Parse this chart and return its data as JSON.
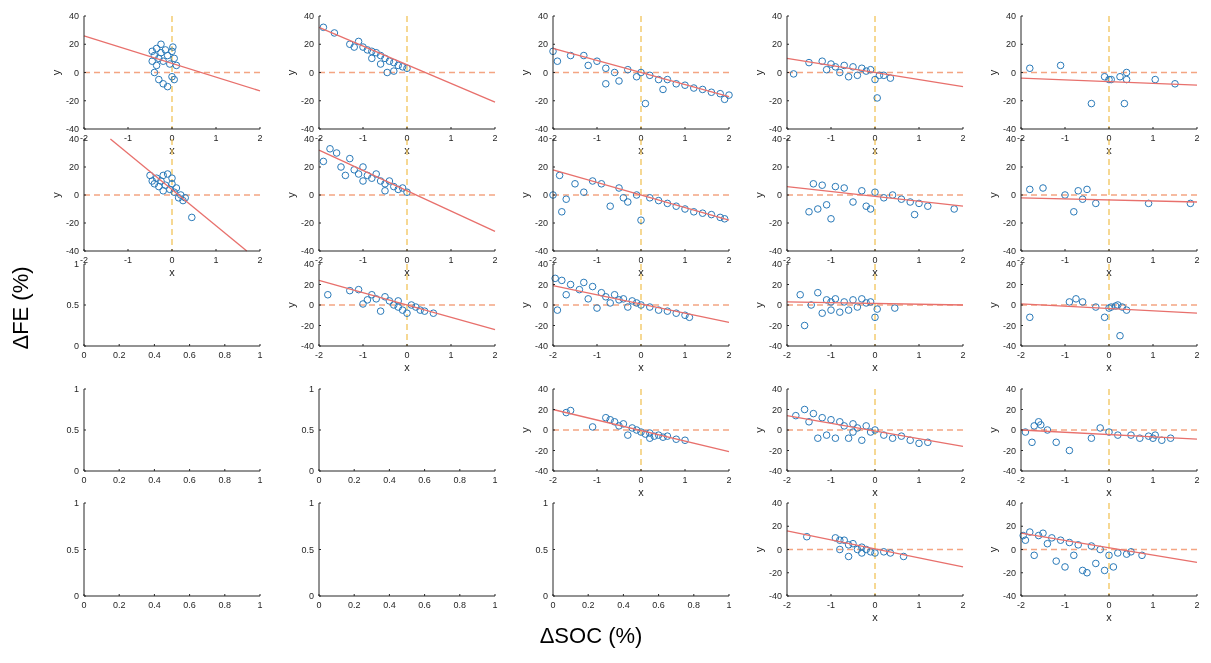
{
  "chart_data": [
    {
      "type": "scatter",
      "xlabel": "x",
      "ylabel": "y",
      "xlim": [
        -2,
        2
      ],
      "ylim": [
        -40,
        40
      ],
      "xticks": [
        -2,
        -1,
        0,
        1,
        2
      ],
      "yticks": [
        -40,
        -20,
        0,
        20,
        40
      ],
      "annotations": [
        "ΔFE (%)",
        "ΔSOC (%)"
      ],
      "ref_lines": [
        {
          "axis": "y",
          "value": 0,
          "color": "#f4a582",
          "line_style": "dashed"
        },
        {
          "axis": "x",
          "value": 0,
          "color": "#f2c45a",
          "line_style": "dashed"
        }
      ],
      "series": [
        {
          "type": "scatter",
          "marker": "circle",
          "color": "#2a7ab9",
          "x": [
            -0.45,
            -0.4,
            -0.35,
            -0.3,
            -0.25,
            -0.2,
            -0.15,
            -0.1,
            -0.05,
            0,
            0.05,
            0.1,
            -0.4,
            -0.3,
            -0.2,
            -0.1,
            0,
            0.05,
            -0.45,
            -0.35,
            0.02,
            -0.25
          ],
          "values": [
            15,
            12,
            17,
            10,
            14,
            8,
            16,
            12,
            6,
            15,
            10,
            5,
            0,
            -5,
            -8,
            -10,
            -3,
            -5,
            8,
            5,
            18,
            20
          ]
        },
        {
          "type": "line",
          "color": "#e8706c",
          "x": [
            -2,
            2
          ],
          "values": [
            26,
            -13
          ]
        }
      ]
    },
    {
      "type": "scatter",
      "xlabel": "x",
      "ylabel": "y",
      "xlim": [
        -2,
        2
      ],
      "ylim": [
        -40,
        40
      ],
      "xticks": [
        -2,
        -1,
        0,
        1,
        2
      ],
      "yticks": [
        -40,
        -20,
        0,
        20,
        40
      ],
      "ref_lines": [
        {
          "axis": "y",
          "value": 0,
          "color": "#f4a582",
          "line_style": "dashed"
        },
        {
          "axis": "x",
          "value": 0,
          "color": "#f2c45a",
          "line_style": "dashed"
        }
      ],
      "series": [
        {
          "type": "scatter",
          "marker": "circle",
          "color": "#2a7ab9",
          "x": [
            -1.9,
            -1.65,
            -1.3,
            -1.1,
            -1,
            -0.9,
            -0.8,
            -0.7,
            -0.6,
            -0.5,
            -0.4,
            -0.3,
            -0.2,
            -0.1,
            0,
            -0.6,
            -0.8,
            -0.3,
            -1.2,
            -0.45
          ],
          "values": [
            32,
            28,
            20,
            22,
            18,
            16,
            15,
            14,
            12,
            10,
            8,
            7,
            5,
            4,
            3,
            6,
            10,
            1,
            18,
            0
          ]
        },
        {
          "type": "line",
          "color": "#e8706c",
          "x": [
            -2,
            2
          ],
          "values": [
            32,
            -21
          ]
        }
      ]
    },
    {
      "type": "scatter",
      "xlabel": "x",
      "ylabel": "y",
      "xlim": [
        -2,
        2
      ],
      "ylim": [
        -40,
        40
      ],
      "xticks": [
        -2,
        -1,
        0,
        1,
        2
      ],
      "yticks": [
        -40,
        -20,
        0,
        20,
        40
      ],
      "ref_lines": [
        {
          "axis": "y",
          "value": 0,
          "color": "#f4a582",
          "line_style": "dashed"
        },
        {
          "axis": "x",
          "value": 0,
          "color": "#f2c45a",
          "line_style": "dashed"
        }
      ],
      "series": [
        {
          "type": "scatter",
          "marker": "circle",
          "color": "#2a7ab9",
          "x": [
            -2,
            -1.9,
            -1.6,
            -1.3,
            -1.2,
            -1,
            -0.8,
            -0.6,
            -0.5,
            -0.3,
            -0.1,
            0,
            0.1,
            0.2,
            0.4,
            0.6,
            0.8,
            1,
            1.2,
            1.4,
            1.6,
            1.8,
            2,
            0.5,
            -0.8,
            1.9
          ],
          "values": [
            15,
            8,
            12,
            12,
            5,
            8,
            3,
            0,
            -6,
            2,
            -3,
            0,
            -22,
            -2,
            -5,
            -5,
            -8,
            -9,
            -11,
            -12,
            -14,
            -15,
            -16,
            -12,
            -8,
            -19
          ]
        },
        {
          "type": "line",
          "color": "#e8706c",
          "x": [
            -2,
            2
          ],
          "values": [
            17,
            -17
          ]
        }
      ]
    },
    {
      "type": "scatter",
      "xlabel": "x",
      "ylabel": "y",
      "xlim": [
        -2,
        2
      ],
      "ylim": [
        -40,
        40
      ],
      "xticks": [
        -2,
        -1,
        0,
        1,
        2
      ],
      "yticks": [
        -40,
        -20,
        0,
        20,
        40
      ],
      "ref_lines": [
        {
          "axis": "y",
          "value": 0,
          "color": "#f4a582",
          "line_style": "dashed"
        },
        {
          "axis": "x",
          "value": 0,
          "color": "#f2c45a",
          "line_style": "dashed"
        }
      ],
      "series": [
        {
          "type": "scatter",
          "marker": "circle",
          "color": "#2a7ab9",
          "x": [
            -1.85,
            -1.5,
            -1.2,
            -1.1,
            -1,
            -0.9,
            -0.7,
            -0.6,
            -0.5,
            -0.4,
            -0.3,
            -0.2,
            -0.1,
            0,
            0.05,
            0.1,
            0.2,
            0.35,
            -0.8
          ],
          "values": [
            -1,
            7,
            8,
            2,
            6,
            4,
            5,
            -3,
            4,
            -2,
            3,
            1,
            2,
            -5,
            -18,
            -2,
            -2,
            -4,
            0
          ]
        },
        {
          "type": "line",
          "color": "#e8706c",
          "x": [
            -2,
            2
          ],
          "values": [
            10,
            -10
          ]
        }
      ]
    },
    {
      "type": "scatter",
      "xlabel": "x",
      "ylabel": "y",
      "xlim": [
        -2,
        2
      ],
      "ylim": [
        -40,
        40
      ],
      "xticks": [
        -2,
        -1,
        0,
        1,
        2
      ],
      "yticks": [
        -40,
        -20,
        0,
        20,
        40
      ],
      "ref_lines": [
        {
          "axis": "y",
          "value": 0,
          "color": "#f4a582",
          "line_style": "dashed"
        },
        {
          "axis": "x",
          "value": 0,
          "color": "#f2c45a",
          "line_style": "dashed"
        }
      ],
      "series": [
        {
          "type": "scatter",
          "marker": "circle",
          "color": "#2a7ab9",
          "x": [
            -1.8,
            -1.1,
            -0.4,
            -0.1,
            0,
            0.05,
            0.25,
            0.35,
            0.4,
            0.4,
            1.05,
            1.5
          ],
          "values": [
            3,
            5,
            -22,
            -3,
            -5,
            -5,
            -3,
            -22,
            -5,
            0,
            -5,
            -8
          ]
        },
        {
          "type": "line",
          "color": "#e8706c",
          "x": [
            -2,
            2
          ],
          "values": [
            -4,
            -9
          ]
        }
      ]
    },
    {
      "type": "scatter",
      "xlabel": "x",
      "ylabel": "y",
      "xlim": [
        -2,
        2
      ],
      "ylim": [
        -40,
        40
      ],
      "xticks": [
        -2,
        -1,
        0,
        1,
        2
      ],
      "yticks": [
        -40,
        -20,
        0,
        20,
        40
      ],
      "ref_lines": [
        {
          "axis": "y",
          "value": 0,
          "color": "#f4a582",
          "line_style": "dashed"
        },
        {
          "axis": "x",
          "value": 0,
          "color": "#f2c45a",
          "line_style": "dashed"
        }
      ],
      "series": [
        {
          "type": "scatter",
          "marker": "circle",
          "color": "#2a7ab9",
          "x": [
            -0.5,
            -0.45,
            -0.4,
            -0.35,
            -0.3,
            -0.25,
            -0.2,
            -0.15,
            -0.1,
            -0.05,
            0,
            0.05,
            0.1,
            0.15,
            0.2,
            0.25,
            0.3,
            -0.2,
            0.45,
            0
          ],
          "values": [
            14,
            10,
            8,
            12,
            6,
            10,
            14,
            7,
            15,
            4,
            8,
            2,
            5,
            -2,
            0,
            -4,
            -2,
            3,
            -16,
            12
          ]
        },
        {
          "type": "line",
          "color": "#e8706c",
          "x": [
            -1.4,
            1.7
          ],
          "values": [
            40,
            -40
          ]
        }
      ]
    },
    {
      "type": "scatter",
      "xlabel": "x",
      "ylabel": "y",
      "xlim": [
        -2,
        2
      ],
      "ylim": [
        -40,
        40
      ],
      "xticks": [
        -2,
        -1,
        0,
        1,
        2
      ],
      "yticks": [
        -40,
        -20,
        0,
        20,
        40
      ],
      "ref_lines": [
        {
          "axis": "y",
          "value": 0,
          "color": "#f4a582",
          "line_style": "dashed"
        },
        {
          "axis": "x",
          "value": 0,
          "color": "#f2c45a",
          "line_style": "dashed"
        }
      ],
      "series": [
        {
          "type": "scatter",
          "marker": "circle",
          "color": "#2a7ab9",
          "x": [
            -1.9,
            -1.75,
            -1.6,
            -1.5,
            -1.4,
            -1.3,
            -1.2,
            -1.1,
            -1,
            -0.9,
            -0.8,
            -0.7,
            -0.6,
            -0.5,
            -0.4,
            -0.3,
            -0.2,
            -0.1,
            0,
            -0.5,
            -1
          ],
          "values": [
            24,
            33,
            30,
            20,
            14,
            26,
            18,
            15,
            20,
            14,
            12,
            15,
            10,
            8,
            10,
            6,
            4,
            5,
            2,
            3,
            10
          ]
        },
        {
          "type": "line",
          "color": "#e8706c",
          "x": [
            -2,
            2
          ],
          "values": [
            32,
            -26
          ]
        }
      ]
    },
    {
      "type": "scatter",
      "xlabel": "x",
      "ylabel": "y",
      "xlim": [
        -2,
        2
      ],
      "ylim": [
        -40,
        40
      ],
      "xticks": [
        -2,
        -1,
        0,
        1,
        2
      ],
      "yticks": [
        -40,
        -20,
        0,
        20,
        40
      ],
      "ref_lines": [
        {
          "axis": "y",
          "value": 0,
          "color": "#f4a582",
          "line_style": "dashed"
        },
        {
          "axis": "x",
          "value": 0,
          "color": "#f2c45a",
          "line_style": "dashed"
        }
      ],
      "series": [
        {
          "type": "scatter",
          "marker": "circle",
          "color": "#2a7ab9",
          "x": [
            -2,
            -1.85,
            -1.8,
            -1.7,
            -1.5,
            -1.3,
            -1.1,
            -0.9,
            -0.7,
            -0.5,
            -0.3,
            -0.1,
            0,
            0.2,
            0.4,
            0.6,
            0.8,
            1,
            1.2,
            1.4,
            1.6,
            1.8,
            1.9,
            -0.4
          ],
          "values": [
            0,
            14,
            -12,
            -3,
            8,
            2,
            10,
            8,
            -8,
            5,
            -5,
            0,
            -18,
            -2,
            -4,
            -6,
            -8,
            -10,
            -12,
            -13,
            -14,
            -16,
            -17,
            -2
          ]
        },
        {
          "type": "line",
          "color": "#e8706c",
          "x": [
            -2,
            2
          ],
          "values": [
            18,
            -18
          ]
        }
      ]
    },
    {
      "type": "scatter",
      "xlabel": "x",
      "ylabel": "y",
      "xlim": [
        -2,
        2
      ],
      "ylim": [
        -40,
        40
      ],
      "xticks": [
        -2,
        -1,
        0,
        1,
        2
      ],
      "yticks": [
        -40,
        -20,
        0,
        20,
        40
      ],
      "ref_lines": [
        {
          "axis": "y",
          "value": 0,
          "color": "#f4a582",
          "line_style": "dashed"
        },
        {
          "axis": "x",
          "value": 0,
          "color": "#f2c45a",
          "line_style": "dashed"
        }
      ],
      "series": [
        {
          "type": "scatter",
          "marker": "circle",
          "color": "#2a7ab9",
          "x": [
            -1.5,
            -1.4,
            -1.3,
            -1.2,
            -1.1,
            -1,
            -0.9,
            -0.7,
            -0.5,
            -0.3,
            -0.2,
            -0.1,
            0,
            0.2,
            0.4,
            0.6,
            0.8,
            0.9,
            1,
            1.2,
            1.8
          ],
          "values": [
            -12,
            8,
            -10,
            7,
            -7,
            -17,
            6,
            5,
            -5,
            3,
            -8,
            -10,
            2,
            -2,
            0,
            -3,
            -5,
            -14,
            -6,
            -8,
            -10
          ]
        },
        {
          "type": "line",
          "color": "#e8706c",
          "x": [
            -2,
            2
          ],
          "values": [
            6,
            -8
          ]
        }
      ]
    },
    {
      "type": "scatter",
      "xlabel": "x",
      "ylabel": "y",
      "xlim": [
        -2,
        2
      ],
      "ylim": [
        -40,
        40
      ],
      "xticks": [
        -2,
        -1,
        0,
        1,
        2
      ],
      "yticks": [
        -40,
        -20,
        0,
        20,
        40
      ],
      "ref_lines": [
        {
          "axis": "y",
          "value": 0,
          "color": "#f4a582",
          "line_style": "dashed"
        },
        {
          "axis": "x",
          "value": 0,
          "color": "#f2c45a",
          "line_style": "dashed"
        }
      ],
      "series": [
        {
          "type": "scatter",
          "marker": "circle",
          "color": "#2a7ab9",
          "x": [
            -1.8,
            -1.5,
            -1,
            -0.8,
            -0.7,
            -0.6,
            -0.5,
            -0.3,
            0.9,
            1.85
          ],
          "values": [
            4,
            5,
            0,
            -12,
            3,
            -3,
            4,
            -6,
            -6,
            -6
          ]
        },
        {
          "type": "line",
          "color": "#e8706c",
          "x": [
            -2,
            2
          ],
          "values": [
            -2,
            -5
          ]
        }
      ]
    },
    {
      "type": "scatter",
      "xlim": [
        0,
        1
      ],
      "ylim": [
        0,
        1
      ],
      "xticks": [
        0,
        0.2,
        0.4,
        0.6,
        0.8,
        1
      ],
      "yticks": [
        0,
        0.5,
        1
      ]
    },
    {
      "type": "scatter",
      "xlabel": "x",
      "ylabel": "y",
      "xlim": [
        -2,
        2
      ],
      "ylim": [
        -40,
        40
      ],
      "xticks": [
        -2,
        -1,
        0,
        1,
        2
      ],
      "yticks": [
        -40,
        -20,
        0,
        20,
        40
      ],
      "ref_lines": [
        {
          "axis": "y",
          "value": 0,
          "color": "#f4a582",
          "line_style": "dashed"
        },
        {
          "axis": "x",
          "value": 0,
          "color": "#f2c45a",
          "line_style": "dashed"
        }
      ],
      "series": [
        {
          "type": "scatter",
          "marker": "circle",
          "color": "#2a7ab9",
          "x": [
            -1.8,
            -1.3,
            -1.1,
            -1,
            -0.9,
            -0.8,
            -0.7,
            -0.6,
            -0.5,
            -0.4,
            -0.3,
            -0.2,
            -0.1,
            0,
            0.1,
            0.2,
            0.3,
            0.4,
            0.6,
            -0.2
          ],
          "values": [
            10,
            14,
            15,
            1,
            5,
            10,
            6,
            -6,
            8,
            4,
            0,
            4,
            -5,
            -8,
            0,
            -2,
            -5,
            -6,
            -8,
            -2
          ]
        },
        {
          "type": "line",
          "color": "#e8706c",
          "x": [
            -2,
            2
          ],
          "values": [
            24,
            -24
          ]
        }
      ]
    },
    {
      "type": "scatter",
      "xlabel": "x",
      "ylabel": "y",
      "xlim": [
        -2,
        2
      ],
      "ylim": [
        -40,
        40
      ],
      "xticks": [
        -2,
        -1,
        0,
        1,
        2
      ],
      "yticks": [
        -40,
        -20,
        0,
        20,
        40
      ],
      "ref_lines": [
        {
          "axis": "y",
          "value": 0,
          "color": "#f4a582",
          "line_style": "dashed"
        },
        {
          "axis": "x",
          "value": 0,
          "color": "#f2c45a",
          "line_style": "dashed"
        }
      ],
      "series": [
        {
          "type": "scatter",
          "marker": "circle",
          "color": "#2a7ab9",
          "x": [
            -1.95,
            -1.8,
            -1.9,
            -1.7,
            -1.6,
            -1.4,
            -1.3,
            -1.2,
            -1.1,
            -1,
            -0.9,
            -0.8,
            -0.7,
            -0.6,
            -0.5,
            -0.4,
            -0.3,
            -0.2,
            -0.1,
            0,
            0.2,
            0.4,
            0.6,
            0.8,
            1,
            1.1
          ],
          "values": [
            26,
            24,
            -5,
            10,
            20,
            15,
            22,
            6,
            18,
            -3,
            12,
            8,
            2,
            10,
            5,
            6,
            -2,
            4,
            2,
            0,
            -2,
            -5,
            -6,
            -8,
            -10,
            -12
          ]
        },
        {
          "type": "line",
          "color": "#e8706c",
          "x": [
            -2,
            2
          ],
          "values": [
            19,
            -17
          ]
        }
      ]
    },
    {
      "type": "scatter",
      "xlabel": "x",
      "ylabel": "y",
      "xlim": [
        -2,
        2
      ],
      "ylim": [
        -40,
        40
      ],
      "xticks": [
        -2,
        -1,
        0,
        1,
        2
      ],
      "yticks": [
        -40,
        -20,
        0,
        20,
        40
      ],
      "ref_lines": [
        {
          "axis": "y",
          "value": 0,
          "color": "#f4a582",
          "line_style": "dashed"
        },
        {
          "axis": "x",
          "value": 0,
          "color": "#f2c45a",
          "line_style": "dashed"
        }
      ],
      "series": [
        {
          "type": "scatter",
          "marker": "circle",
          "color": "#2a7ab9",
          "x": [
            -1.7,
            -1.6,
            -1.45,
            -1.3,
            -1.2,
            -1.1,
            -1,
            -0.9,
            -0.8,
            -0.7,
            -0.6,
            -0.5,
            -0.4,
            -0.3,
            -0.2,
            -0.1,
            0,
            0.05,
            0.45,
            -1
          ],
          "values": [
            10,
            -20,
            0,
            12,
            -8,
            5,
            -5,
            6,
            -7,
            3,
            -5,
            5,
            -2,
            6,
            2,
            3,
            -12,
            -4,
            -3,
            3
          ]
        },
        {
          "type": "line",
          "color": "#e8706c",
          "x": [
            -2,
            2
          ],
          "values": [
            3,
            0
          ]
        }
      ]
    },
    {
      "type": "scatter",
      "xlabel": "x",
      "ylabel": "y",
      "xlim": [
        -2,
        2
      ],
      "ylim": [
        -40,
        40
      ],
      "xticks": [
        -2,
        -1,
        0,
        1,
        2
      ],
      "yticks": [
        -40,
        -20,
        0,
        20,
        40
      ],
      "ref_lines": [
        {
          "axis": "y",
          "value": 0,
          "color": "#f4a582",
          "line_style": "dashed"
        },
        {
          "axis": "x",
          "value": 0,
          "color": "#f2c45a",
          "line_style": "dashed"
        }
      ],
      "series": [
        {
          "type": "scatter",
          "marker": "circle",
          "color": "#2a7ab9",
          "x": [
            -1.8,
            -0.9,
            -0.75,
            -0.6,
            -0.3,
            -0.1,
            0,
            0.05,
            0.15,
            0.2,
            0.25,
            0.3,
            0.4
          ],
          "values": [
            -12,
            3,
            6,
            3,
            -2,
            -12,
            -3,
            -2,
            -1,
            0,
            -30,
            -2,
            -5
          ]
        },
        {
          "type": "line",
          "color": "#e8706c",
          "x": [
            -2,
            2
          ],
          "values": [
            1,
            -8
          ]
        }
      ]
    },
    {
      "type": "scatter",
      "xlim": [
        0,
        1
      ],
      "ylim": [
        0,
        1
      ],
      "xticks": [
        0,
        0.2,
        0.4,
        0.6,
        0.8,
        1
      ],
      "yticks": [
        0,
        0.5,
        1
      ]
    },
    {
      "type": "scatter",
      "xlim": [
        0,
        1
      ],
      "ylim": [
        0,
        1
      ],
      "xticks": [
        0,
        0.2,
        0.4,
        0.6,
        0.8,
        1
      ],
      "yticks": [
        0,
        0.5,
        1
      ]
    },
    {
      "type": "scatter",
      "xlabel": "x",
      "ylabel": "y",
      "xlim": [
        -2,
        2
      ],
      "ylim": [
        -40,
        40
      ],
      "xticks": [
        -2,
        -1,
        0,
        1,
        2
      ],
      "yticks": [
        -40,
        -20,
        0,
        20,
        40
      ],
      "ref_lines": [
        {
          "axis": "y",
          "value": 0,
          "color": "#f4a582",
          "line_style": "dashed"
        },
        {
          "axis": "x",
          "value": 0,
          "color": "#f2c45a",
          "line_style": "dashed"
        }
      ],
      "series": [
        {
          "type": "scatter",
          "marker": "circle",
          "color": "#2a7ab9",
          "x": [
            -1.7,
            -1.6,
            -1.1,
            -0.8,
            -0.7,
            -0.6,
            -0.5,
            -0.4,
            -0.3,
            -0.2,
            -0.1,
            0,
            0.1,
            0.2,
            0.3,
            0.4,
            0.5,
            0.6,
            0.8,
            1,
            0.2
          ],
          "values": [
            17,
            19,
            3,
            12,
            10,
            8,
            4,
            6,
            -5,
            2,
            0,
            -2,
            -4,
            -3,
            -6,
            -5,
            -7,
            -6,
            -9,
            -10,
            -8
          ]
        },
        {
          "type": "line",
          "color": "#e8706c",
          "x": [
            -2,
            2
          ],
          "values": [
            20,
            -21
          ]
        }
      ]
    },
    {
      "type": "scatter",
      "xlabel": "x",
      "ylabel": "y",
      "xlim": [
        -2,
        2
      ],
      "ylim": [
        -40,
        40
      ],
      "xticks": [
        -2,
        -1,
        0,
        1,
        2
      ],
      "yticks": [
        -40,
        -20,
        0,
        20,
        40
      ],
      "ref_lines": [
        {
          "axis": "y",
          "value": 0,
          "color": "#f4a582",
          "line_style": "dashed"
        },
        {
          "axis": "x",
          "value": 0,
          "color": "#f2c45a",
          "line_style": "dashed"
        }
      ],
      "series": [
        {
          "type": "scatter",
          "marker": "circle",
          "color": "#2a7ab9",
          "x": [
            -1.8,
            -1.6,
            -1.5,
            -1.4,
            -1.3,
            -1.2,
            -1.1,
            -1,
            -0.9,
            -0.8,
            -0.7,
            -0.6,
            -0.5,
            -0.4,
            -0.3,
            -0.2,
            -0.1,
            0,
            0.2,
            0.4,
            0.6,
            0.8,
            1,
            1.2,
            -0.5
          ],
          "values": [
            14,
            20,
            8,
            16,
            -8,
            12,
            -5,
            10,
            -8,
            8,
            4,
            -8,
            6,
            2,
            -10,
            4,
            -2,
            0,
            -5,
            -8,
            -6,
            -10,
            -13,
            -12,
            -2
          ]
        },
        {
          "type": "line",
          "color": "#e8706c",
          "x": [
            -2,
            2
          ],
          "values": [
            14,
            -16
          ]
        }
      ]
    },
    {
      "type": "scatter",
      "xlabel": "x",
      "ylabel": "y",
      "xlim": [
        -2,
        2
      ],
      "ylim": [
        -40,
        40
      ],
      "xticks": [
        -2,
        -1,
        0,
        1,
        2
      ],
      "yticks": [
        -40,
        -20,
        0,
        20,
        40
      ],
      "ref_lines": [
        {
          "axis": "y",
          "value": 0,
          "color": "#f4a582",
          "line_style": "dashed"
        },
        {
          "axis": "x",
          "value": 0,
          "color": "#f2c45a",
          "line_style": "dashed"
        }
      ],
      "series": [
        {
          "type": "scatter",
          "marker": "circle",
          "color": "#2a7ab9",
          "x": [
            -1.9,
            -1.75,
            -1.7,
            -1.6,
            -1.55,
            -1.4,
            -1.2,
            -0.9,
            -0.4,
            -0.2,
            0,
            0.2,
            0.5,
            0.7,
            0.9,
            1,
            1.05,
            1.2,
            1.4
          ],
          "values": [
            -2,
            -12,
            4,
            8,
            5,
            0,
            -12,
            -20,
            -8,
            2,
            -2,
            -5,
            -5,
            -8,
            -6,
            -8,
            -5,
            -10,
            -8
          ]
        },
        {
          "type": "line",
          "color": "#e8706c",
          "x": [
            -2,
            2
          ],
          "values": [
            0,
            -9
          ]
        }
      ]
    },
    {
      "type": "scatter",
      "xlim": [
        0,
        1
      ],
      "ylim": [
        0,
        1
      ],
      "xticks": [
        0,
        0.2,
        0.4,
        0.6,
        0.8,
        1
      ],
      "yticks": [
        0,
        0.5,
        1
      ]
    },
    {
      "type": "scatter",
      "xlim": [
        0,
        1
      ],
      "ylim": [
        0,
        1
      ],
      "xticks": [
        0,
        0.2,
        0.4,
        0.6,
        0.8,
        1
      ],
      "yticks": [
        0,
        0.5,
        1
      ]
    },
    {
      "type": "scatter",
      "xlim": [
        0,
        1
      ],
      "ylim": [
        0,
        1
      ],
      "xticks": [
        0,
        0.2,
        0.4,
        0.6,
        0.8,
        1
      ],
      "yticks": [
        0,
        0.5,
        1
      ]
    },
    {
      "type": "scatter",
      "xlabel": "x",
      "ylabel": "y",
      "xlim": [
        -2,
        2
      ],
      "ylim": [
        -40,
        40
      ],
      "xticks": [
        -2,
        -1,
        0,
        1,
        2
      ],
      "yticks": [
        -40,
        -20,
        0,
        20,
        40
      ],
      "ref_lines": [
        {
          "axis": "y",
          "value": 0,
          "color": "#f4a582",
          "line_style": "dashed"
        },
        {
          "axis": "x",
          "value": 0,
          "color": "#f2c45a",
          "line_style": "dashed"
        }
      ],
      "series": [
        {
          "type": "scatter",
          "marker": "circle",
          "color": "#2a7ab9",
          "x": [
            -1.55,
            -0.9,
            -0.8,
            -0.7,
            -0.6,
            -0.8,
            -0.5,
            -0.4,
            -0.6,
            -0.3,
            -0.2,
            -0.1,
            0,
            0.2,
            0.35,
            0.65,
            -0.3
          ],
          "values": [
            11,
            10,
            8,
            8,
            4,
            0,
            5,
            0,
            -6,
            2,
            0,
            -2,
            -3,
            -2,
            -3,
            -6,
            -3
          ]
        },
        {
          "type": "line",
          "color": "#e8706c",
          "x": [
            -2,
            2
          ],
          "values": [
            16,
            -15
          ]
        }
      ]
    },
    {
      "type": "scatter",
      "xlabel": "x",
      "ylabel": "y",
      "xlim": [
        -2,
        2
      ],
      "ylim": [
        -40,
        40
      ],
      "xticks": [
        -2,
        -1,
        0,
        1,
        2
      ],
      "yticks": [
        -40,
        -20,
        0,
        20,
        40
      ],
      "ref_lines": [
        {
          "axis": "y",
          "value": 0,
          "color": "#f4a582",
          "line_style": "dashed"
        },
        {
          "axis": "x",
          "value": 0,
          "color": "#f2c45a",
          "line_style": "dashed"
        }
      ],
      "series": [
        {
          "type": "scatter",
          "marker": "circle",
          "color": "#2a7ab9",
          "x": [
            -1.95,
            -1.9,
            -1.8,
            -1.7,
            -1.6,
            -1.5,
            -1.4,
            -1.3,
            -1.2,
            -1.1,
            -1,
            -0.9,
            -0.8,
            -0.7,
            -0.6,
            -0.5,
            -0.4,
            -0.3,
            -0.2,
            -0.1,
            0,
            0.1,
            0.2,
            0.4,
            0.5,
            0.75
          ],
          "values": [
            12,
            8,
            15,
            -5,
            12,
            14,
            5,
            10,
            -10,
            8,
            -15,
            6,
            -5,
            4,
            -18,
            -20,
            3,
            -12,
            0,
            -18,
            -5,
            -15,
            -3,
            -4,
            -2,
            -5
          ]
        },
        {
          "type": "line",
          "color": "#e8706c",
          "x": [
            -2,
            2
          ],
          "values": [
            14,
            -11
          ]
        }
      ]
    }
  ]
}
